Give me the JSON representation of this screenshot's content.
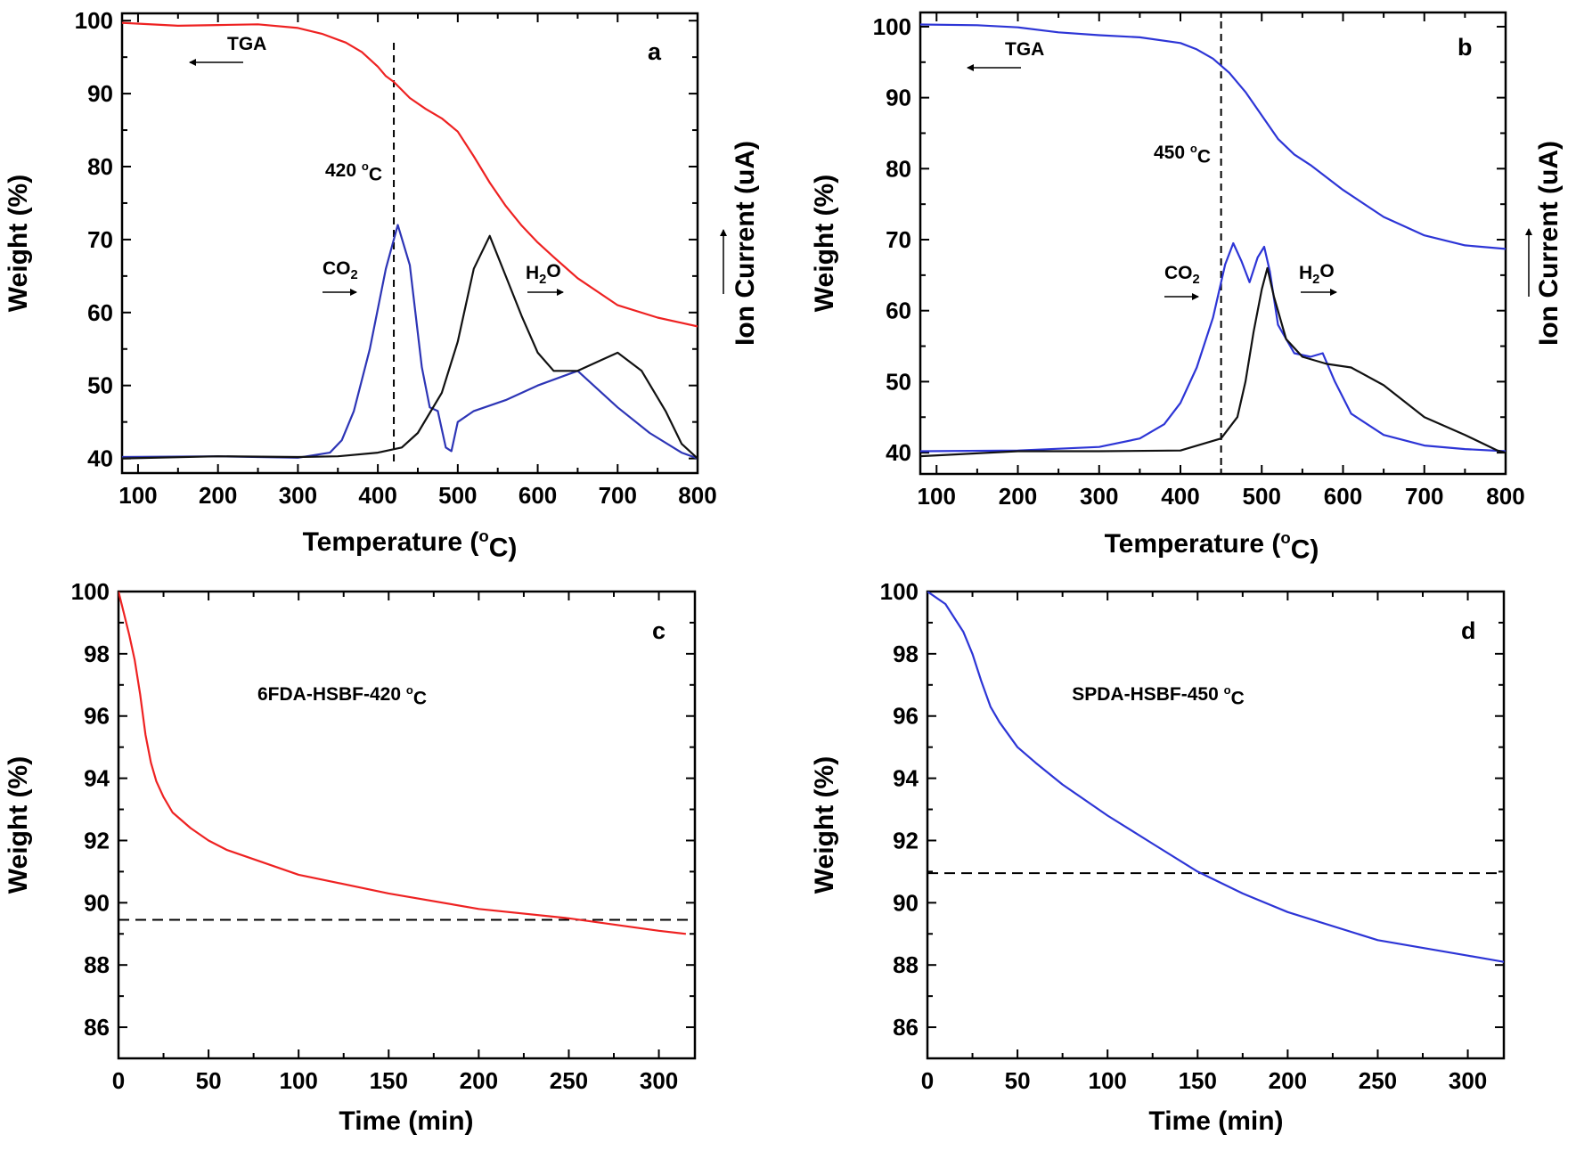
{
  "chart_data": [
    {
      "panel": "a",
      "type": "line",
      "xlabel": "Temperature (°C)",
      "ylabel": "Weight (%)",
      "y2label": "Ion Current (uA)",
      "xlim": [
        80,
        800
      ],
      "ylim": [
        38,
        101
      ],
      "xticks": [
        100,
        200,
        300,
        400,
        500,
        600,
        700,
        800
      ],
      "yticks": [
        40,
        50,
        60,
        70,
        80,
        90,
        100
      ],
      "grid": false,
      "marker_line": {
        "x": 420,
        "label": "420 °C"
      },
      "annotations": {
        "tga": "TGA",
        "co2": "CO",
        "co2_sub": "2",
        "h2o_pre": "H",
        "h2o_sub": "2",
        "h2o_post": "O"
      },
      "colors": {
        "tga": "#ee2222",
        "co2": "#2d35b6",
        "h2o": "#111111"
      },
      "series": [
        {
          "name": "TGA",
          "color": "#ee2222",
          "x": [
            80,
            150,
            200,
            250,
            300,
            330,
            360,
            380,
            400,
            410,
            420,
            440,
            460,
            480,
            500,
            520,
            540,
            560,
            580,
            600,
            620,
            650,
            700,
            750,
            800
          ],
          "y": [
            99.7,
            99.3,
            99.4,
            99.5,
            99,
            98.2,
            97,
            95.7,
            93.7,
            92.4,
            91.6,
            89.4,
            87.9,
            86.6,
            84.8,
            81.4,
            77.8,
            74.6,
            71.9,
            69.6,
            67.6,
            64.7,
            61,
            59.3,
            58.1
          ]
        },
        {
          "name": "CO",
          "color": "#2d35b6",
          "x": [
            80,
            200,
            300,
            340,
            355,
            370,
            390,
            410,
            425,
            440,
            455,
            465,
            475,
            485,
            492,
            500,
            520,
            560,
            600,
            650,
            700,
            740,
            780,
            800
          ],
          "y": [
            40.2,
            40.3,
            40.1,
            40.8,
            42.5,
            46.5,
            55,
            66,
            72,
            66.5,
            52.5,
            47,
            46.5,
            41.5,
            41,
            45,
            46.5,
            48,
            50,
            52,
            47,
            43.5,
            40.8,
            40
          ]
        },
        {
          "name": "H",
          "color": "#111111",
          "x": [
            80,
            200,
            300,
            350,
            400,
            430,
            450,
            480,
            500,
            520,
            540,
            560,
            580,
            600,
            620,
            650,
            680,
            700,
            730,
            760,
            780,
            800
          ],
          "y": [
            40,
            40.3,
            40.2,
            40.3,
            40.8,
            41.5,
            43.5,
            49,
            56,
            66,
            70.5,
            65,
            59.5,
            54.5,
            52,
            52,
            53.5,
            54.5,
            52,
            46.5,
            42,
            40
          ]
        }
      ]
    },
    {
      "panel": "b",
      "type": "line",
      "xlabel": "Temperature (°C)",
      "ylabel": "Weight (%)",
      "y2label": "Ion Current (uA)",
      "xlim": [
        80,
        800
      ],
      "ylim": [
        37,
        102
      ],
      "xticks": [
        100,
        200,
        300,
        400,
        500,
        600,
        700,
        800
      ],
      "yticks": [
        40,
        50,
        60,
        70,
        80,
        90,
        100
      ],
      "grid": false,
      "marker_line": {
        "x": 450,
        "label": "450 °C"
      },
      "annotations": {
        "tga": "TGA",
        "co2": "CO",
        "co2_sub": "2",
        "h2o_pre": "H",
        "h2o_sub": "2",
        "h2o_post": "O"
      },
      "colors": {
        "tga": "#2d35d6",
        "co2": "#2d35d6",
        "h2o": "#111111"
      },
      "series": [
        {
          "name": "TGA",
          "color": "#2d35d6",
          "x": [
            80,
            150,
            200,
            250,
            300,
            350,
            400,
            420,
            440,
            460,
            480,
            500,
            520,
            540,
            560,
            600,
            650,
            700,
            750,
            800
          ],
          "y": [
            100.3,
            100.2,
            99.9,
            99.2,
            98.8,
            98.5,
            97.7,
            96.8,
            95.5,
            93.5,
            90.8,
            87.5,
            84.2,
            82,
            80.5,
            77,
            73.2,
            70.6,
            69.2,
            68.7
          ]
        },
        {
          "name": "CO",
          "color": "#2d35d6",
          "x": [
            80,
            200,
            300,
            350,
            380,
            400,
            420,
            440,
            455,
            465,
            475,
            485,
            495,
            503,
            510,
            520,
            540,
            560,
            575,
            590,
            610,
            650,
            700,
            750,
            800
          ],
          "y": [
            40.2,
            40.3,
            40.8,
            42,
            44,
            47,
            52,
            59,
            66.5,
            69.5,
            67,
            64,
            67.5,
            69,
            65.5,
            58,
            54,
            53.5,
            54,
            50,
            45.5,
            42.5,
            41,
            40.5,
            40.2
          ]
        },
        {
          "name": "H",
          "color": "#111111",
          "x": [
            80,
            200,
            300,
            400,
            450,
            470,
            480,
            490,
            500,
            507,
            515,
            530,
            550,
            580,
            610,
            650,
            700,
            750,
            790,
            800
          ],
          "y": [
            39.5,
            40.2,
            40.2,
            40.3,
            42,
            45,
            50,
            57,
            63,
            66,
            62,
            56,
            53.5,
            52.5,
            52,
            49.5,
            45,
            42.5,
            40.3,
            40
          ]
        }
      ]
    },
    {
      "panel": "c",
      "type": "line",
      "xlabel": "Time (min)",
      "ylabel": "Weight (%)",
      "xlim": [
        0,
        320
      ],
      "ylim": [
        85,
        100
      ],
      "xticks": [
        0,
        50,
        100,
        150,
        200,
        250,
        300
      ],
      "yticks": [
        86,
        88,
        90,
        92,
        94,
        96,
        98,
        100
      ],
      "grid": false,
      "label": "6FDA-HSBF-420 °C",
      "reference_line": {
        "y": 89.45
      },
      "series": [
        {
          "color": "#ee2222",
          "x": [
            0,
            3,
            6,
            9,
            12,
            15,
            18,
            21,
            25,
            30,
            40,
            50,
            60,
            80,
            100,
            150,
            200,
            250,
            300,
            315
          ],
          "y": [
            100,
            99.3,
            98.6,
            97.8,
            96.7,
            95.4,
            94.5,
            93.9,
            93.4,
            92.9,
            92.4,
            92,
            91.7,
            91.3,
            90.9,
            90.3,
            89.8,
            89.5,
            89.1,
            89
          ]
        }
      ]
    },
    {
      "panel": "d",
      "type": "line",
      "xlabel": "Time (min)",
      "ylabel": "Weight (%)",
      "xlim": [
        0,
        320
      ],
      "ylim": [
        85,
        100
      ],
      "xticks": [
        0,
        50,
        100,
        150,
        200,
        250,
        300
      ],
      "yticks": [
        86,
        88,
        90,
        92,
        94,
        96,
        98,
        100
      ],
      "grid": false,
      "label": "SPDA-HSBF-450 °C",
      "reference_line": {
        "y": 90.95
      },
      "series": [
        {
          "color": "#2d35d6",
          "x": [
            0,
            10,
            20,
            25,
            30,
            35,
            40,
            50,
            60,
            75,
            100,
            125,
            150,
            175,
            200,
            250,
            300,
            320
          ],
          "y": [
            100,
            99.6,
            98.7,
            98,
            97.1,
            96.3,
            95.8,
            95,
            94.5,
            93.8,
            92.8,
            91.9,
            91,
            90.3,
            89.7,
            88.8,
            88.3,
            88.1
          ]
        }
      ]
    }
  ]
}
